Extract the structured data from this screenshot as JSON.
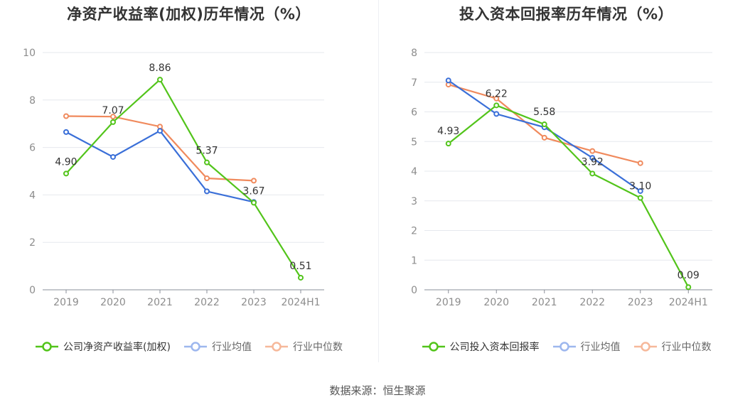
{
  "chart_data": [
    {
      "type": "line",
      "title": "净资产收益率(加权)历年情况（%）",
      "categories": [
        "2019",
        "2020",
        "2021",
        "2022",
        "2023",
        "2024H1"
      ],
      "ylim": [
        0,
        10
      ],
      "yticks": [
        0,
        2,
        4,
        6,
        8,
        10
      ],
      "grid": true,
      "legend_position": "bottom",
      "series": [
        {
          "name": "公司净资产收益率(加权)",
          "color": "#52c41a",
          "values": [
            4.9,
            7.07,
            8.86,
            5.37,
            3.67,
            0.51
          ],
          "labels": [
            "4.90",
            "7.07",
            "8.86",
            "5.37",
            "3.67",
            "0.51"
          ]
        },
        {
          "name": "行业均值",
          "color": "#3a6fd8",
          "values": [
            6.65,
            5.6,
            6.7,
            4.15,
            3.7,
            null
          ]
        },
        {
          "name": "行业中位数",
          "color": "#f08a5d",
          "values": [
            7.32,
            7.3,
            6.88,
            4.7,
            4.6,
            null
          ]
        }
      ]
    },
    {
      "type": "line",
      "title": "投入资本回报率历年情况（%）",
      "categories": [
        "2019",
        "2020",
        "2021",
        "2022",
        "2023",
        "2024H1"
      ],
      "ylim": [
        0,
        8
      ],
      "yticks": [
        0,
        1,
        2,
        3,
        4,
        5,
        6,
        7,
        8
      ],
      "grid": true,
      "legend_position": "bottom",
      "series": [
        {
          "name": "公司投入资本回报率",
          "color": "#52c41a",
          "values": [
            4.93,
            6.22,
            5.58,
            3.92,
            3.1,
            0.09
          ],
          "labels": [
            "4.93",
            "6.22",
            "5.58",
            "3.92",
            "3.10",
            "0.09"
          ]
        },
        {
          "name": "行业均值",
          "color": "#3a6fd8",
          "values": [
            7.06,
            5.93,
            5.48,
            4.45,
            3.33,
            null
          ]
        },
        {
          "name": "行业中位数",
          "color": "#f08a5d",
          "values": [
            6.92,
            6.45,
            5.13,
            4.68,
            4.27,
            null
          ]
        }
      ]
    }
  ],
  "footer": {
    "source": "数据来源：恒生聚源"
  }
}
